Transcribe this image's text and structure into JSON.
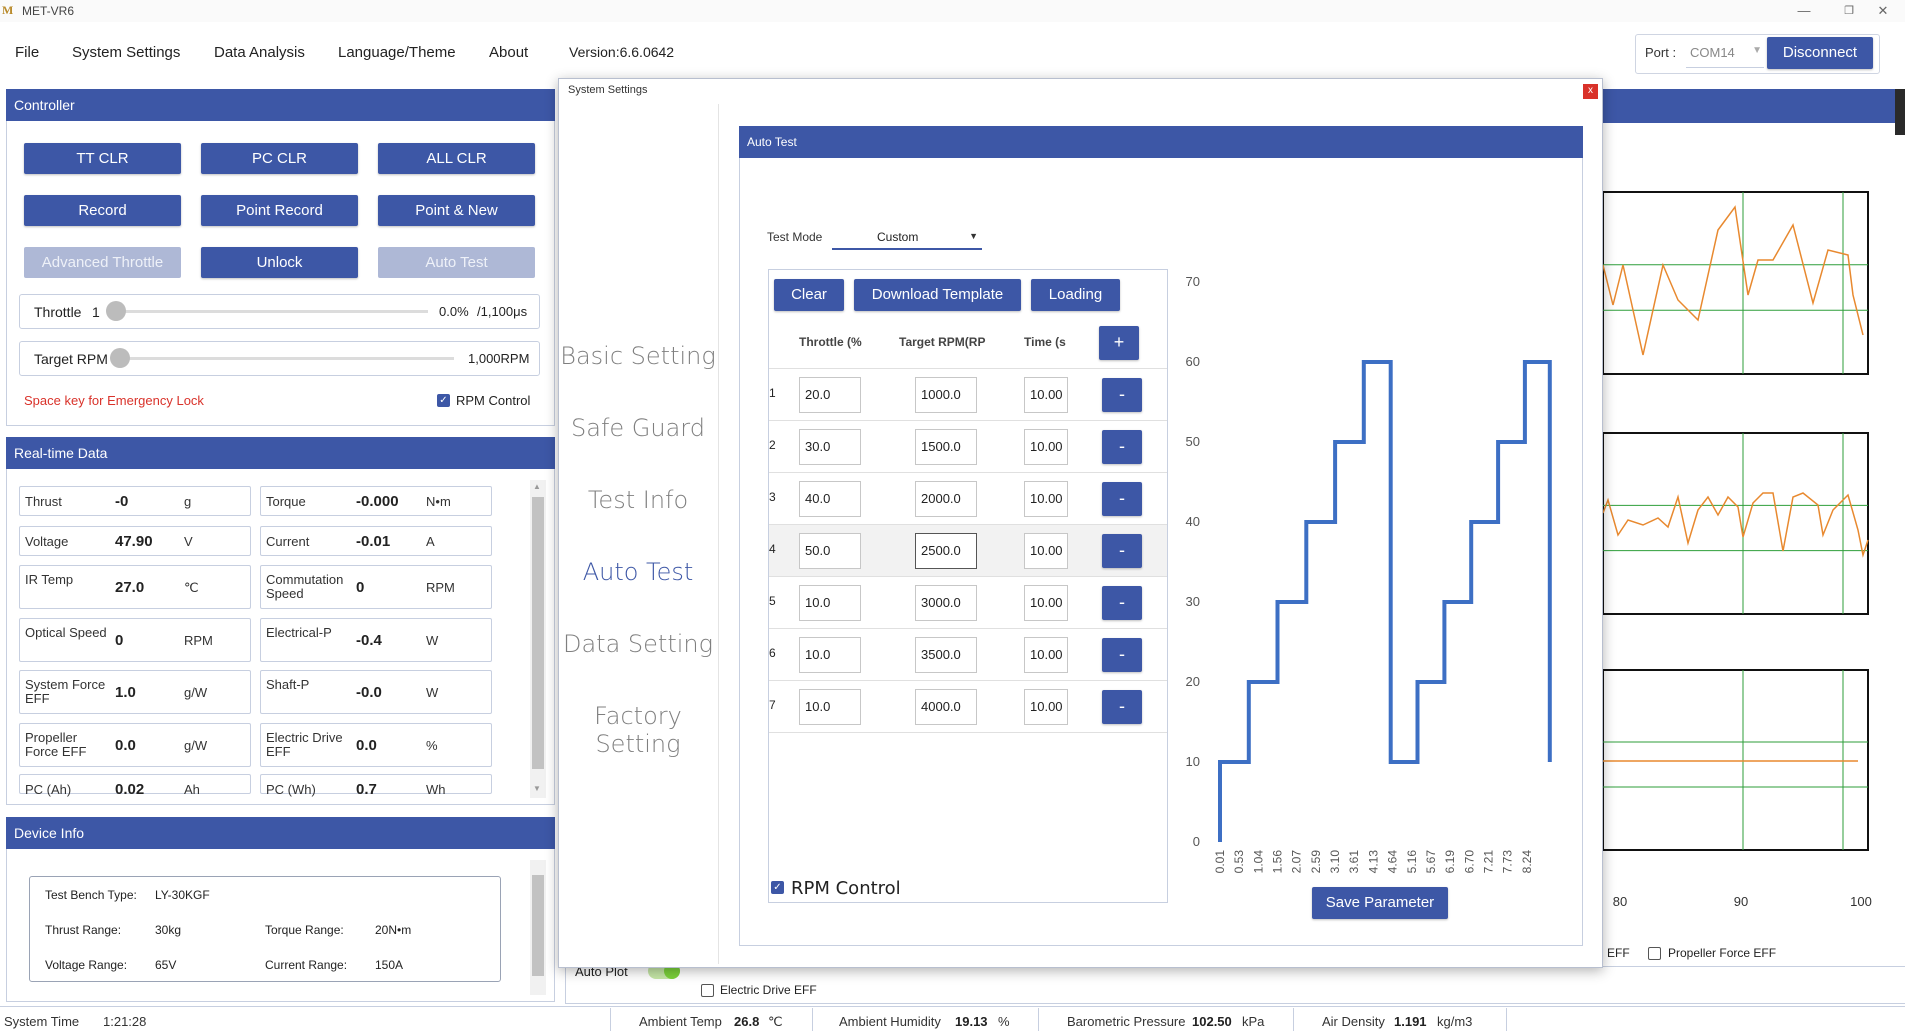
{
  "window": {
    "title": "MET-VR6",
    "logo": "M",
    "min_icon": "minimize-icon",
    "max_icon": "restore-icon",
    "close_icon": "close-icon"
  },
  "menu": {
    "file": "File",
    "system_settings": "System Settings",
    "data_analysis": "Data Analysis",
    "language_theme": "Language/Theme",
    "about": "About",
    "version": "Version:6.6.0642"
  },
  "port": {
    "label": "Port :",
    "value": "COM14",
    "disconnect": "Disconnect"
  },
  "controller": {
    "title": "Controller",
    "buttons": [
      "TT CLR",
      "PC CLR",
      "ALL CLR",
      "Record",
      "Point Record",
      "Point & New",
      "Advanced Throttle",
      "Unlock",
      "Auto Test"
    ],
    "throttle_label": "Throttle",
    "throttle_step": "1",
    "throttle_value": "0.0%",
    "throttle_max": "/1,100μs",
    "throttle_level": 0.0,
    "target_rpm_label": "Target RPM",
    "target_rpm_value": "1,000RPM",
    "target_rpm_level": 0.0,
    "emergency": "Space key for Emergency Lock",
    "rpm_control": "RPM Control"
  },
  "realtime": {
    "title": "Real-time Data",
    "rows": [
      {
        "l_label": "Thrust",
        "l_value": "-0",
        "l_unit": "g",
        "r_label": "Torque",
        "r_value": "-0.000",
        "r_unit": "N•m"
      },
      {
        "l_label": "Voltage",
        "l_value": "47.90",
        "l_unit": "V",
        "r_label": "Current",
        "r_value": "-0.01",
        "r_unit": "A"
      },
      {
        "l_label": "IR Temp",
        "l_value": "27.0",
        "l_unit": "℃",
        "r_label": "Commutation Speed",
        "r_value": "0",
        "r_unit": "RPM"
      },
      {
        "l_label": "Optical Speed",
        "l_value": "0",
        "l_unit": "RPM",
        "r_label": "Electrical-P",
        "r_value": "-0.4",
        "r_unit": "W"
      },
      {
        "l_label": "System Force EFF",
        "l_value": "1.0",
        "l_unit": "g/W",
        "r_label": "Shaft-P",
        "r_value": "-0.0",
        "r_unit": "W"
      },
      {
        "l_label": "Propeller Force EFF",
        "l_value": "0.0",
        "l_unit": "g/W",
        "r_label": "Electric Drive EFF",
        "r_value": "0.0",
        "r_unit": "%"
      },
      {
        "l_label": "PC (Ah)",
        "l_value": "0.02",
        "l_unit": "Ah",
        "r_label": "PC (Wh)",
        "r_value": "0.7",
        "r_unit": "Wh"
      }
    ]
  },
  "device": {
    "title": "Device Info",
    "bench_label": "Test Bench Type:",
    "bench_value": "LY-30KGF",
    "thrust_label": "Thrust Range:",
    "thrust_value": "30kg",
    "torque_label": "Torque Range:",
    "torque_value": "20N•m",
    "voltage_label": "Voltage Range:",
    "voltage_value": "65V",
    "current_label": "Current Range:",
    "current_value": "150A"
  },
  "dialog": {
    "title": "System Settings",
    "close": "x",
    "nav": [
      "Basic Setting",
      "Safe Guard",
      "Test Info",
      "Auto Test",
      "Data Setting",
      "Factory Setting"
    ],
    "nav_active": 3,
    "section_title": "Auto Test",
    "test_mode_label": "Test Mode",
    "test_mode_value": "Custom",
    "clear": "Clear",
    "download_template": "Download Template",
    "loading": "Loading",
    "col_throttle": "Throttle (%",
    "col_rpm": "Target RPM(RP",
    "col_time": "Time (s",
    "add": "+",
    "remove": "-",
    "rows": [
      {
        "idx": "1",
        "throttle": "20.0",
        "rpm": "1000.0",
        "time": "10.00"
      },
      {
        "idx": "2",
        "throttle": "30.0",
        "rpm": "1500.0",
        "time": "10.00"
      },
      {
        "idx": "3",
        "throttle": "40.0",
        "rpm": "2000.0",
        "time": "10.00"
      },
      {
        "idx": "4",
        "throttle": "50.0",
        "rpm": "2500.0",
        "time": "10.00"
      },
      {
        "idx": "5",
        "throttle": "10.0",
        "rpm": "3000.0",
        "time": "10.00"
      },
      {
        "idx": "6",
        "throttle": "10.0",
        "rpm": "3500.0",
        "time": "10.00"
      },
      {
        "idx": "7",
        "throttle": "10.0",
        "rpm": "4000.0",
        "time": "10.00"
      }
    ],
    "rpm_control": "RPM Control",
    "save": "Save Parameter"
  },
  "chart_data": {
    "type": "line",
    "series_color": "#3d6fc4",
    "ylim": [
      0,
      70
    ],
    "y_ticks": [
      "0",
      "10",
      "20",
      "30",
      "40",
      "50",
      "60",
      "70"
    ],
    "x_ticks": [
      "0.01",
      "0.53",
      "1.04",
      "1.56",
      "2.07",
      "2.59",
      "3.10",
      "3.61",
      "4.13",
      "4.64",
      "5.16",
      "5.67",
      "6.19",
      "6.70",
      "7.21",
      "7.73",
      "8.24"
    ],
    "x_steps": 17,
    "points": [
      [
        0,
        0
      ],
      [
        0,
        10
      ],
      [
        1.5,
        10
      ],
      [
        1.5,
        20
      ],
      [
        3,
        20
      ],
      [
        3,
        30
      ],
      [
        4.5,
        30
      ],
      [
        4.5,
        40
      ],
      [
        6,
        40
      ],
      [
        6,
        50
      ],
      [
        7.5,
        50
      ],
      [
        7.5,
        60
      ],
      [
        8.9,
        60
      ],
      [
        8.9,
        10
      ],
      [
        10.3,
        10
      ],
      [
        10.3,
        20
      ],
      [
        11.7,
        20
      ],
      [
        11.7,
        30
      ],
      [
        13.1,
        30
      ],
      [
        13.1,
        40
      ],
      [
        14.5,
        40
      ],
      [
        14.5,
        50
      ],
      [
        15.9,
        50
      ],
      [
        15.9,
        60
      ],
      [
        17.2,
        60
      ],
      [
        17.2,
        10
      ]
    ]
  },
  "bg_chart": {
    "x_ticks": [
      "80",
      "90",
      "100"
    ],
    "line_color": "#e8892f",
    "grid_color": "#2e9e3a",
    "legend_a": "EFF",
    "legend_b": "Propeller Force EFF",
    "auto_plot": "Auto Plot",
    "electric_drive_eff": "Electric Drive EFF"
  },
  "status": {
    "system_time_label": "System Time",
    "system_time": "1:21:28",
    "ambient_temp_label": "Ambient Temp",
    "ambient_temp": "26.8",
    "ambient_temp_unit": "℃",
    "humidity_label": "Ambient Humidity",
    "humidity": "19.13",
    "humidity_unit": "%",
    "pressure_label": "Barometric Pressure",
    "pressure": "102.50",
    "pressure_unit": "kPa",
    "density_label": "Air Density",
    "density": "1.191",
    "density_unit": "kg/m3"
  }
}
